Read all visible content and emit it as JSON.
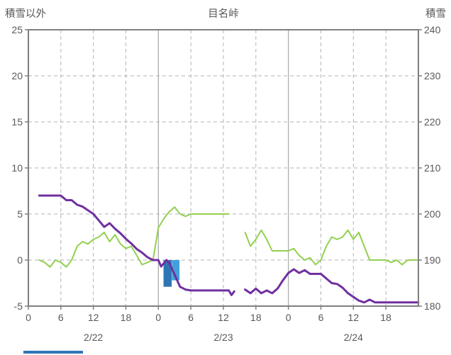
{
  "chart_data": {
    "type": "line",
    "title": "目名峠",
    "left_axis": {
      "label": "積雪以外",
      "min": -5,
      "max": 25,
      "ticks": [
        25,
        20,
        15,
        10,
        5,
        0,
        -5
      ]
    },
    "right_axis": {
      "label": "積雪",
      "min": 180,
      "max": 240,
      "ticks": [
        240,
        230,
        220,
        210,
        200,
        190,
        180
      ]
    },
    "x_axis": {
      "min": 0,
      "max": 72,
      "tick_step": 6,
      "tick_labels": [
        "0",
        "6",
        "12",
        "18",
        "0",
        "6",
        "12",
        "18",
        "0",
        "6",
        "12",
        "18"
      ],
      "day_labels": [
        {
          "label": "2/22",
          "center_hour": 12
        },
        {
          "label": "2/23",
          "center_hour": 36
        },
        {
          "label": "2/24",
          "center_hour": 60
        }
      ],
      "day_boundaries": [
        24,
        48
      ]
    },
    "colors": {
      "gridline": "#b3b3b3",
      "day_separator": "#a6a6a6",
      "border": "#7f7f7f",
      "text": "#595959",
      "purple": "#7030a0",
      "green": "#92d050",
      "bar_dark_blue": "#2e75b6",
      "bar_light_blue": "#41a0dc",
      "bottom_bar": "#2e75b6"
    },
    "series": [
      {
        "name": "green-line",
        "axis": "right",
        "color": "#92d050",
        "width": 2,
        "points": [
          [
            2,
            190
          ],
          [
            3,
            189.5
          ],
          [
            4,
            188.5
          ],
          [
            5,
            190
          ],
          [
            6,
            189.5
          ],
          [
            7,
            188.5
          ],
          [
            8,
            190
          ],
          [
            9,
            193
          ],
          [
            10,
            194
          ],
          [
            11,
            193.5
          ],
          [
            12,
            194.5
          ],
          [
            13,
            195
          ],
          [
            14,
            196
          ],
          [
            15,
            194
          ],
          [
            16,
            195.5
          ],
          [
            17,
            193.5
          ],
          [
            18,
            192.5
          ],
          [
            19,
            193
          ],
          [
            20,
            191
          ],
          [
            21,
            189
          ],
          [
            22,
            189.5
          ],
          [
            23,
            190
          ],
          [
            24,
            197
          ],
          [
            25,
            199
          ],
          [
            26,
            200.5
          ],
          [
            27,
            201.5
          ],
          [
            28,
            200
          ],
          [
            29,
            199.5
          ],
          [
            30,
            200
          ],
          [
            31,
            200
          ],
          [
            32,
            200
          ],
          [
            33,
            200
          ],
          [
            34,
            200
          ],
          [
            35,
            200
          ],
          [
            36,
            200
          ],
          [
            37,
            200
          ],
          [
            38,
            null
          ],
          [
            39,
            null
          ],
          [
            40,
            196
          ],
          [
            41,
            193
          ],
          [
            42,
            194.5
          ],
          [
            43,
            196.5
          ],
          [
            44,
            194.5
          ],
          [
            45,
            192
          ],
          [
            46,
            192
          ],
          [
            47,
            192
          ],
          [
            48,
            192
          ],
          [
            49,
            192.5
          ],
          [
            50,
            191
          ],
          [
            51,
            190
          ],
          [
            52,
            190.5
          ],
          [
            53,
            189
          ],
          [
            54,
            190
          ],
          [
            55,
            193
          ],
          [
            56,
            195
          ],
          [
            57,
            194.5
          ],
          [
            58,
            195
          ],
          [
            59,
            196.5
          ],
          [
            60,
            194.5
          ],
          [
            61,
            196
          ],
          [
            62,
            193
          ],
          [
            63,
            190
          ],
          [
            64,
            190
          ],
          [
            65,
            190
          ],
          [
            66,
            190
          ],
          [
            67,
            189.5
          ],
          [
            68,
            190
          ],
          [
            69,
            189
          ],
          [
            70,
            190
          ],
          [
            71,
            190
          ],
          [
            72,
            190
          ]
        ]
      },
      {
        "name": "purple-line",
        "axis": "left",
        "color": "#7030a0",
        "width": 3,
        "points": [
          [
            2,
            7
          ],
          [
            3,
            7
          ],
          [
            4,
            7
          ],
          [
            5,
            7
          ],
          [
            6,
            7
          ],
          [
            7,
            6.5
          ],
          [
            8,
            6.5
          ],
          [
            9,
            6
          ],
          [
            10,
            5.8
          ],
          [
            11,
            5.4
          ],
          [
            12,
            5
          ],
          [
            13,
            4.3
          ],
          [
            14,
            3.6
          ],
          [
            15,
            4
          ],
          [
            16,
            3.4
          ],
          [
            17,
            2.9
          ],
          [
            18,
            2.3
          ],
          [
            19,
            1.8
          ],
          [
            20,
            1.2
          ],
          [
            21,
            0.8
          ],
          [
            22,
            0.3
          ],
          [
            23,
            0
          ],
          [
            24,
            0
          ],
          [
            24.5,
            -0.7
          ],
          [
            25.5,
            0
          ],
          [
            26,
            -0.3
          ],
          [
            27,
            -1.6
          ],
          [
            28,
            -2.9
          ],
          [
            29,
            -3.2
          ],
          [
            30,
            -3.3
          ],
          [
            31,
            -3.3
          ],
          [
            32,
            -3.3
          ],
          [
            33,
            -3.3
          ],
          [
            34,
            -3.3
          ],
          [
            35,
            -3.3
          ],
          [
            36,
            -3.3
          ],
          [
            37,
            -3.3
          ],
          [
            37.5,
            -3.8
          ],
          [
            38,
            -3.4
          ],
          [
            39,
            null
          ],
          [
            40,
            -3.2
          ],
          [
            41,
            -3.6
          ],
          [
            42,
            -3.1
          ],
          [
            43,
            -3.6
          ],
          [
            44,
            -3.3
          ],
          [
            45,
            -3.6
          ],
          [
            46,
            -3.1
          ],
          [
            47,
            -2.2
          ],
          [
            48,
            -1.4
          ],
          [
            49,
            -1
          ],
          [
            50,
            -1.4
          ],
          [
            51,
            -1.1
          ],
          [
            52,
            -1.5
          ],
          [
            53,
            -1.5
          ],
          [
            54,
            -1.5
          ],
          [
            55,
            -2
          ],
          [
            56,
            -2.5
          ],
          [
            57,
            -2.6
          ],
          [
            58,
            -3
          ],
          [
            59,
            -3.6
          ],
          [
            60,
            -4
          ],
          [
            61,
            -4.4
          ],
          [
            62,
            -4.6
          ],
          [
            63,
            -4.3
          ],
          [
            64,
            -4.6
          ],
          [
            65,
            -4.6
          ],
          [
            66,
            -4.6
          ],
          [
            67,
            -4.6
          ],
          [
            68,
            -4.6
          ],
          [
            69,
            -4.6
          ],
          [
            70,
            -4.6
          ],
          [
            71,
            -4.6
          ],
          [
            72,
            -4.6
          ]
        ]
      }
    ],
    "bars": [
      {
        "name": "bar-dark-blue",
        "x": 25.7,
        "width": 1.5,
        "value": -2.9,
        "color": "#2e75b6"
      },
      {
        "name": "bar-light-blue",
        "x": 27.2,
        "width": 1.4,
        "value": -2.2,
        "color": "#41a0dc"
      }
    ]
  }
}
